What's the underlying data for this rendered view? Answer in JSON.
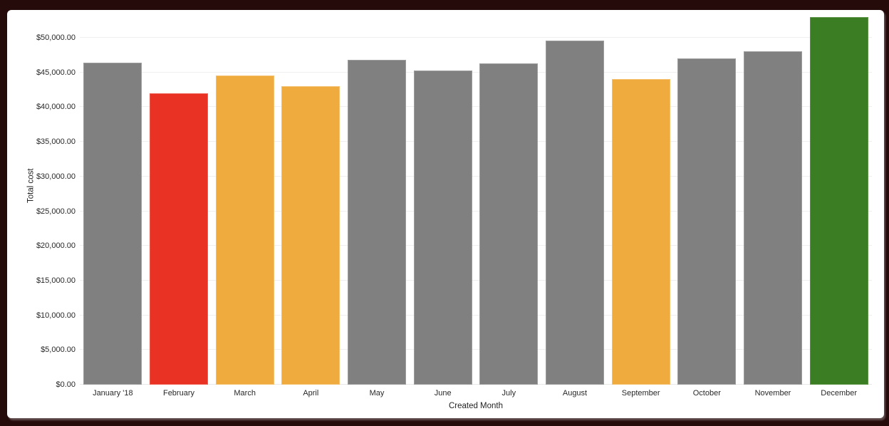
{
  "frame": {
    "background_color": "#260b0b",
    "card_background_color": "#ffffff"
  },
  "chart_data": {
    "type": "bar",
    "title": "",
    "xlabel": "Created Month",
    "ylabel": "Total cost",
    "x": [
      "January '18",
      "February",
      "March",
      "April",
      "May",
      "June",
      "July",
      "August",
      "September",
      "October",
      "November",
      "December"
    ],
    "values": [
      46450,
      42000,
      44600,
      43050,
      46850,
      45250,
      46350,
      49650,
      44100,
      47000,
      48050,
      52950
    ],
    "bar_colors": [
      "#808080",
      "#E93223",
      "#F0AB3F",
      "#F0AB3F",
      "#808080",
      "#808080",
      "#808080",
      "#808080",
      "#F0AB3F",
      "#808080",
      "#808080",
      "#3A7D22"
    ],
    "bar_border_colors": [
      "#9d9d9d",
      "#ee5f51",
      "#f4c06e",
      "#f4c06e",
      "#9d9d9d",
      "#9d9d9d",
      "#9d9d9d",
      "#9d9d9d",
      "#f4c06e",
      "#9d9d9d",
      "#9d9d9d",
      "#5d9347"
    ],
    "color_legend": {
      "default_gray": "#808080",
      "alert_red": "#E93223",
      "warning_orange": "#F0AB3F",
      "good_green": "#3A7D22"
    },
    "ylim": [
      0,
      53500
    ],
    "y_ticks": [
      0,
      5000,
      10000,
      15000,
      20000,
      25000,
      30000,
      35000,
      40000,
      45000,
      50000
    ],
    "y_tick_labels": [
      "$0.00",
      "$5,000.00",
      "$10,000.00",
      "$15,000.00",
      "$20,000.00",
      "$25,000.00",
      "$30,000.00",
      "$35,000.00",
      "$40,000.00",
      "$45,000.00",
      "$50,000.00"
    ],
    "grid": "horizontal",
    "legend": "none"
  }
}
